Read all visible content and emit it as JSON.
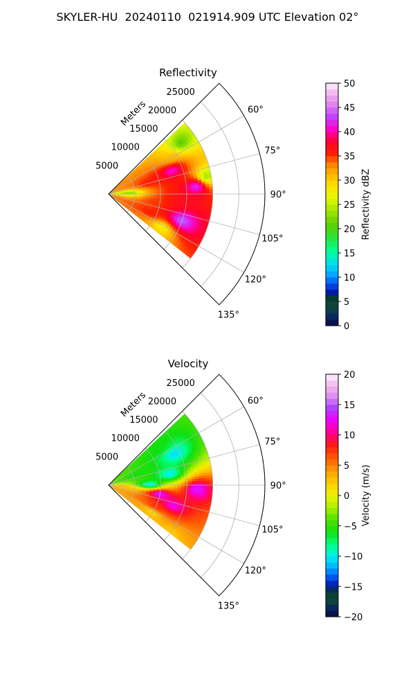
{
  "figure": {
    "suptitle": "SKYLER-HU  20240110  021914.909 UTC Elevation 02°"
  },
  "chart_data": [
    {
      "type": "heatmap",
      "subtype": "polar radar sector (PPI)",
      "title": "Reflectivity",
      "radial_axis_label": "Meters",
      "radial_ticks": [
        5000,
        10000,
        15000,
        20000,
        25000
      ],
      "radial_range": [
        0,
        30000
      ],
      "angle_ticks_deg": [
        60,
        75,
        90,
        105,
        120,
        135
      ],
      "angle_range_deg": [
        45,
        135
      ],
      "grid": true,
      "colorbar": {
        "label": "Reflectivity dBZ",
        "range": [
          0,
          50
        ],
        "ticks": [
          0,
          5,
          10,
          15,
          20,
          25,
          30,
          35,
          40,
          45,
          50
        ]
      },
      "echo_extent": {
        "radius_max_m": 20000,
        "azimuth_min_deg": 47,
        "azimuth_max_deg": 128
      },
      "cells": [
        {
          "az": 70,
          "r": 13000,
          "value": 42
        },
        {
          "az": 85,
          "r": 17000,
          "value": 44
        },
        {
          "az": 110,
          "r": 15000,
          "value": 45
        },
        {
          "az": 75,
          "r": 8000,
          "value": 36
        },
        {
          "az": 100,
          "r": 9000,
          "value": 35
        },
        {
          "az": 115,
          "r": 9000,
          "value": 36
        },
        {
          "az": 95,
          "r": 14000,
          "value": 37
        },
        {
          "az": 60,
          "r": 14000,
          "value": 31
        },
        {
          "az": 88,
          "r": 4000,
          "value": 22
        },
        {
          "az": 80,
          "r": 19000,
          "value": 22
        },
        {
          "az": 55,
          "r": 17000,
          "value": 20
        },
        {
          "az": 122,
          "r": 12000,
          "value": 27
        }
      ]
    },
    {
      "type": "heatmap",
      "subtype": "polar radar sector (PPI)",
      "title": "Velocity",
      "radial_axis_label": "Meters",
      "radial_ticks": [
        5000,
        10000,
        15000,
        20000,
        25000
      ],
      "radial_range": [
        0,
        30000
      ],
      "angle_ticks_deg": [
        60,
        75,
        90,
        105,
        120,
        135
      ],
      "angle_range_deg": [
        45,
        135
      ],
      "grid": true,
      "colorbar": {
        "label": "Velocity (m/s)",
        "range": [
          -20,
          20
        ],
        "ticks": [
          -20,
          -15,
          -10,
          -5,
          0,
          5,
          10,
          15,
          20
        ]
      },
      "echo_extent": {
        "radius_max_m": 20000,
        "azimuth_min_deg": 47,
        "azimuth_max_deg": 128
      },
      "cells": [
        {
          "az": 65,
          "r": 14000,
          "value": -11
        },
        {
          "az": 80,
          "r": 12000,
          "value": -11
        },
        {
          "az": 90,
          "r": 8000,
          "value": -12
        },
        {
          "az": 70,
          "r": 6000,
          "value": -6
        },
        {
          "az": 55,
          "r": 12000,
          "value": -6
        },
        {
          "az": 100,
          "r": 10000,
          "value": 15
        },
        {
          "az": 108,
          "r": 13000,
          "value": 13
        },
        {
          "az": 115,
          "r": 10000,
          "value": 8
        },
        {
          "az": 122,
          "r": 10000,
          "value": 1
        },
        {
          "az": 128,
          "r": 15000,
          "value": 2
        },
        {
          "az": 93,
          "r": 17000,
          "value": 14
        },
        {
          "az": 97,
          "r": 3000,
          "value": 3
        }
      ]
    }
  ]
}
